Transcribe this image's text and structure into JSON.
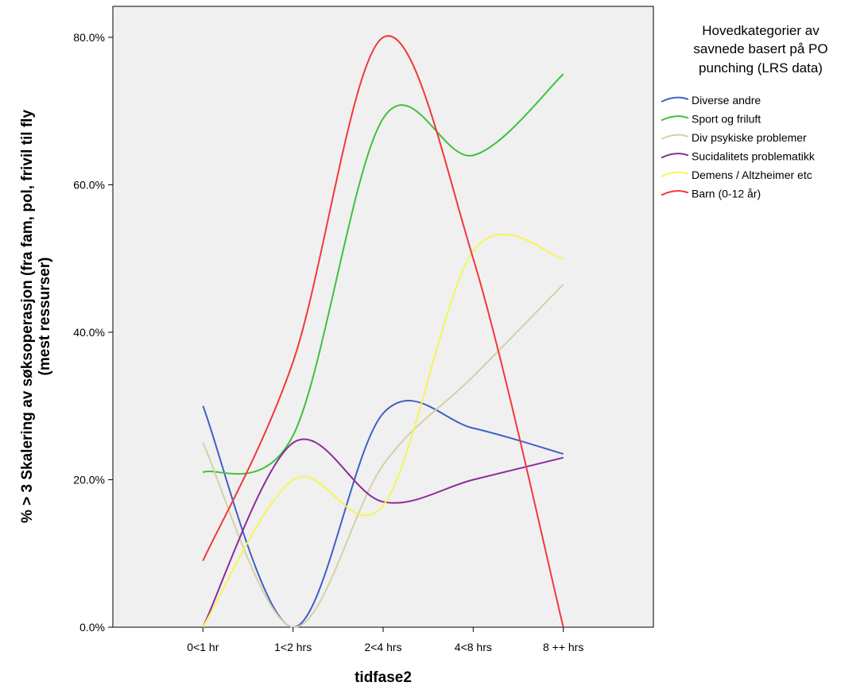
{
  "chart_data": {
    "type": "line",
    "xlabel": "tidfase2",
    "ylabel_line1": "% > 3 Skalering av søksoperasjon (fra fam, pol, frivil til fly",
    "ylabel_line2": "(mest ressurser)",
    "categories": [
      "0<1 hr",
      "1<2 hrs",
      "2<4 hrs",
      "4<8 hrs",
      "8 ++ hrs"
    ],
    "y_ticks": [
      "0.0%",
      "20.0%",
      "40.0%",
      "60.0%",
      "80.0%"
    ],
    "y_tick_values": [
      0,
      20,
      40,
      60,
      80
    ],
    "ylim": [
      0,
      84.2
    ],
    "grid": false,
    "legend_placement": "right",
    "legend_title_lines": [
      "Hovedkategorier av",
      "savnede basert på PO",
      "punching (LRS data)"
    ],
    "series": [
      {
        "name": "Diverse andre",
        "color": "#3f5fc6",
        "values": [
          30,
          0,
          29,
          27,
          23.5
        ]
      },
      {
        "name": "Sport og friluft",
        "color": "#3cc23c",
        "values": [
          21,
          26,
          69,
          64,
          75
        ]
      },
      {
        "name": "Div psykiske problemer",
        "color": "#d6d0a6",
        "values": [
          25,
          0,
          22,
          34,
          46.5
        ]
      },
      {
        "name": "Sucidalitets problematikk",
        "color": "#8c2c96",
        "values": [
          0,
          25,
          17,
          20,
          23
        ]
      },
      {
        "name": "Demens / Altzheimer etc",
        "color": "#f5f55a",
        "values": [
          0,
          20,
          16.5,
          51,
          50
        ]
      },
      {
        "name": "Barn (0-12 år)",
        "color": "#f0383c",
        "values": [
          9,
          36,
          80,
          50,
          0
        ]
      }
    ]
  }
}
